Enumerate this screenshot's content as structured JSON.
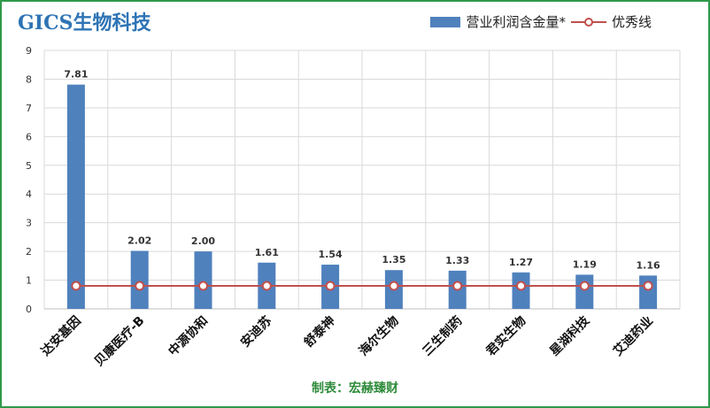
{
  "chart_data": {
    "type": "bar",
    "title": "GICS生物科技",
    "categories": [
      "达安基因",
      "贝康医疗-B",
      "中源协和",
      "安迪苏",
      "舒泰神",
      "海尔生物",
      "三生制药",
      "君实生物",
      "星湖科技",
      "艾迪药业"
    ],
    "series": [
      {
        "name": "营业利润含金量*",
        "type": "bar",
        "values": [
          7.81,
          2.02,
          2.0,
          1.61,
          1.54,
          1.35,
          1.33,
          1.27,
          1.19,
          1.16
        ]
      },
      {
        "name": "优秀线",
        "type": "line",
        "values": [
          0.8,
          0.8,
          0.8,
          0.8,
          0.8,
          0.8,
          0.8,
          0.8,
          0.8,
          0.8
        ]
      }
    ],
    "data_labels": [
      "7.81",
      "2.02",
      "2.00",
      "1.61",
      "1.54",
      "1.35",
      "1.33",
      "1.27",
      "1.19",
      "1.16"
    ],
    "yticks": [
      "0",
      "1",
      "2",
      "3",
      "4",
      "5",
      "6",
      "7",
      "8",
      "9"
    ],
    "ylim": [
      0,
      9
    ],
    "grid": true,
    "legend": "top-right",
    "colors": {
      "bar": "#4f81bd",
      "line": "#c0504d",
      "grid": "#d9d9d9"
    },
    "credit": "制表：宏赫臻财"
  }
}
